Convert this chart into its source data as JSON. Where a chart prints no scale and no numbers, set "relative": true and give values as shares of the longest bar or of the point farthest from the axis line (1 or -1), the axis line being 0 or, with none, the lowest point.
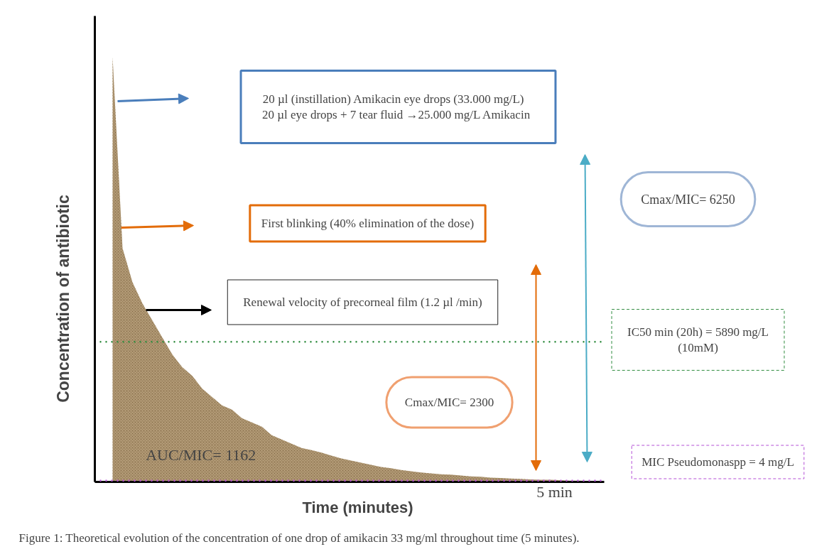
{
  "chart_data": {
    "type": "area",
    "relative": true,
    "ylabel": "Concentration of antibiotic",
    "xlabel": "Time (minutes)",
    "categories": [
      null,
      null,
      null,
      null,
      null,
      null,
      null,
      null,
      null,
      null,
      null,
      null,
      null,
      null,
      null,
      null,
      null,
      null,
      null,
      null,
      null,
      null,
      null,
      null,
      null,
      null,
      null,
      null,
      null,
      null,
      null,
      null,
      null,
      null,
      null,
      null,
      null,
      null,
      null,
      null,
      null,
      null,
      null,
      null,
      null,
      null,
      null,
      null,
      null,
      null
    ],
    "series": [
      {
        "color": "#a88c62",
        "values": [
          1.0,
          0.55,
          0.47,
          0.42,
          0.38,
          0.34,
          0.3,
          0.27,
          0.25,
          0.22,
          0.2,
          0.18,
          0.17,
          0.15,
          0.14,
          0.13,
          0.11,
          0.1,
          0.09,
          0.08,
          0.075,
          0.069,
          0.062,
          0.055,
          0.05,
          0.045,
          0.04,
          0.035,
          0.032,
          0.028,
          0.025,
          0.022,
          0.02,
          0.018,
          0.017,
          0.015,
          0.013,
          0.012,
          0.01,
          0.009,
          0.008,
          0.007,
          0.006,
          0.005,
          0.005,
          0.004,
          0.003,
          0.003,
          0.002,
          0.002
        ]
      }
    ],
    "ref_lines": [
      {
        "axis": "y",
        "value": 0.33,
        "color": "#2e8b3e",
        "line_style": "dotted"
      },
      {
        "axis": "y",
        "value": 0.003,
        "color": "#b44fd6",
        "line_style": "dotted"
      }
    ],
    "annotations": [
      "20 µl (instillation)    Amikacin eye drops (33.000 mg/L)\n20 µl eye drops + 7 tear fluid →25.000 mg/L  Amikacin",
      "First blinking (40% elimination of the dose)",
      "Renewal velocity of precorneal film (1.2 µl /min)",
      "Cmax/MIC= 6250",
      "Cmax/MIC= 2300",
      "AUC/MIC=  1162",
      "5 min",
      "IC50 min (20h) = 5890 mg/L\n(10mM)",
      "MIC Pseudomonaspp = 4 mg/L",
      "Figure 1: Theoretical evolution of the concentration of one drop of amikacin 33 mg/ml throughout time (5 minutes)."
    ]
  }
}
